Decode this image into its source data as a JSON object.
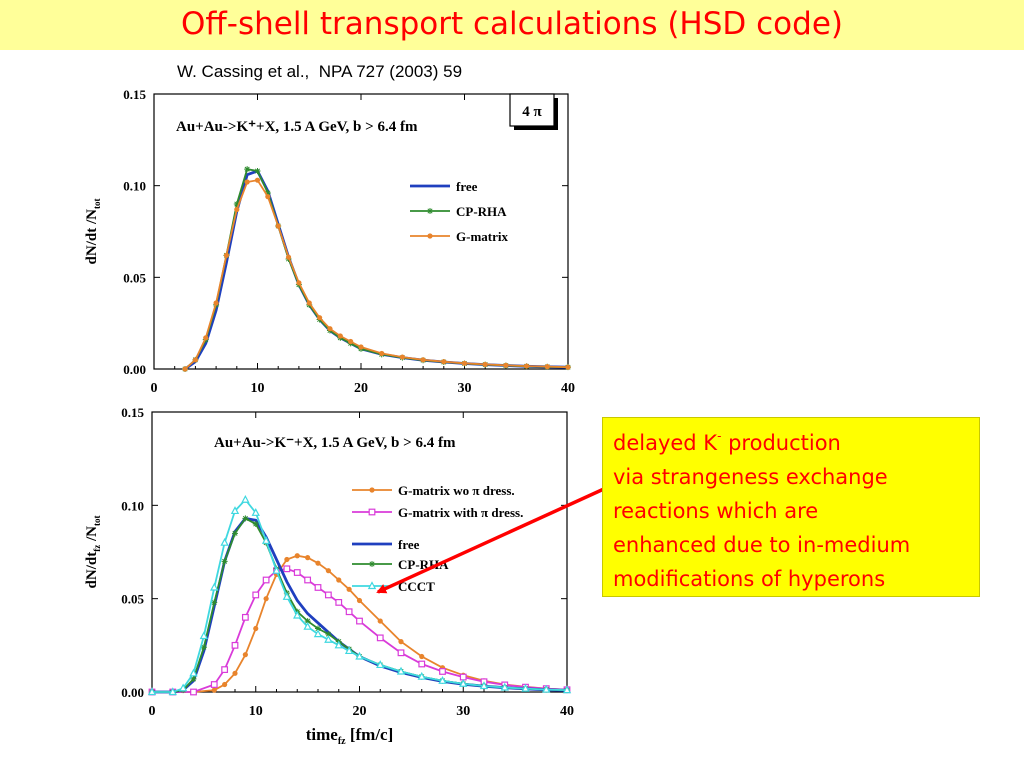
{
  "header": {
    "title": "Off-shell transport calculations (HSD code)",
    "citation": "W. Cassing et al.,  NPA 727 (2003) 59"
  },
  "callout": {
    "line1_main": "delayed K",
    "line1_sup": "-",
    "line1_tail": " production",
    "line2": "via strangeness exchange",
    "line3": "reactions which are",
    "line4": "enhanced due to in-medium",
    "line5": "modifications of hyperons"
  },
  "colors": {
    "title": "#ff0000",
    "title_bg": "#ffff99",
    "callout_bg": "#ffff00",
    "callout_text": "#ff0000",
    "arrow": "#ff0000"
  },
  "chart_data": [
    {
      "type": "line",
      "panel": "top",
      "title": "Au+Au->K⁺+X, 1.5 A GeV, b > 6.4 fm",
      "badge": "4 π",
      "xlabel": "",
      "ylabel": "dN/dt /N_tot",
      "xlim": [
        0,
        40
      ],
      "ylim": [
        0,
        0.15
      ],
      "xticks": [
        "0",
        "10",
        "20",
        "30",
        "40"
      ],
      "yticks": [
        "0.00",
        "0.05",
        "0.10",
        "0.15"
      ],
      "legend_position": "right",
      "series": [
        {
          "name": "free",
          "color": "#1f3fbf",
          "marker": "none",
          "x": [
            3,
            4,
            5,
            6,
            7,
            8,
            9,
            10,
            11,
            12,
            13,
            14,
            15,
            16,
            17,
            18,
            19,
            20,
            22,
            24,
            26,
            28,
            30,
            32,
            34,
            36,
            38,
            40
          ],
          "y": [
            0.0,
            0.004,
            0.014,
            0.032,
            0.058,
            0.086,
            0.106,
            0.108,
            0.097,
            0.079,
            0.061,
            0.046,
            0.035,
            0.027,
            0.021,
            0.017,
            0.014,
            0.011,
            0.008,
            0.0062,
            0.0048,
            0.0038,
            0.003,
            0.0024,
            0.0019,
            0.0015,
            0.0012,
            0.001
          ]
        },
        {
          "name": "CP-RHA",
          "color": "#2e8b2e",
          "marker": "star",
          "x": [
            3,
            4,
            5,
            6,
            7,
            8,
            9,
            10,
            11,
            12,
            13,
            14,
            15,
            16,
            17,
            18,
            19,
            20,
            22,
            24,
            26,
            28,
            30,
            32,
            34,
            36,
            38,
            40
          ],
          "y": [
            0.0,
            0.005,
            0.016,
            0.035,
            0.062,
            0.09,
            0.109,
            0.108,
            0.096,
            0.078,
            0.06,
            0.046,
            0.035,
            0.027,
            0.021,
            0.017,
            0.014,
            0.011,
            0.008,
            0.0062,
            0.0048,
            0.0038,
            0.003,
            0.0024,
            0.0019,
            0.0015,
            0.0012,
            0.001
          ]
        },
        {
          "name": "G-matrix",
          "color": "#e8842c",
          "marker": "circle",
          "x": [
            3,
            4,
            5,
            6,
            7,
            8,
            9,
            10,
            11,
            12,
            13,
            14,
            15,
            16,
            17,
            18,
            19,
            20,
            22,
            24,
            26,
            28,
            30,
            32,
            34,
            36,
            38,
            40
          ],
          "y": [
            0.0,
            0.005,
            0.017,
            0.036,
            0.062,
            0.087,
            0.102,
            0.103,
            0.094,
            0.078,
            0.061,
            0.047,
            0.036,
            0.028,
            0.022,
            0.018,
            0.015,
            0.012,
            0.0085,
            0.0065,
            0.005,
            0.004,
            0.0031,
            0.0025,
            0.002,
            0.0016,
            0.0013,
            0.001
          ]
        }
      ]
    },
    {
      "type": "line",
      "panel": "bottom",
      "title": "Au+Au->K⁻+X, 1.5 A GeV, b > 6.4 fm",
      "xlabel": "time_fz [fm/c]",
      "ylabel": "dN/dt_fz /N_tot",
      "xlim": [
        0,
        40
      ],
      "ylim": [
        0,
        0.15
      ],
      "xticks": [
        "0",
        "10",
        "20",
        "30",
        "40"
      ],
      "yticks": [
        "0.00",
        "0.05",
        "0.10",
        "0.15"
      ],
      "legend_position": "right",
      "series": [
        {
          "name": "G-matrix wo π dress.",
          "color": "#e8842c",
          "marker": "circle",
          "x": [
            0,
            2,
            4,
            6,
            7,
            8,
            9,
            10,
            11,
            12,
            13,
            14,
            15,
            16,
            17,
            18,
            19,
            20,
            22,
            24,
            26,
            28,
            30,
            32,
            34,
            36,
            38,
            40
          ],
          "y": [
            0.0,
            0.0,
            0.0,
            0.001,
            0.004,
            0.01,
            0.02,
            0.034,
            0.05,
            0.063,
            0.071,
            0.073,
            0.072,
            0.069,
            0.065,
            0.06,
            0.055,
            0.049,
            0.038,
            0.027,
            0.019,
            0.013,
            0.009,
            0.006,
            0.004,
            0.0028,
            0.0018,
            0.0012
          ]
        },
        {
          "name": "G-matrix with π dress.",
          "color": "#d93bd9",
          "marker": "square",
          "x": [
            0,
            2,
            4,
            6,
            7,
            8,
            9,
            10,
            11,
            12,
            13,
            14,
            15,
            16,
            17,
            18,
            19,
            20,
            22,
            24,
            26,
            28,
            30,
            32,
            34,
            36,
            38,
            40
          ],
          "y": [
            0.0,
            0.0,
            0.0,
            0.004,
            0.012,
            0.025,
            0.04,
            0.052,
            0.06,
            0.065,
            0.066,
            0.064,
            0.06,
            0.056,
            0.052,
            0.048,
            0.043,
            0.038,
            0.029,
            0.021,
            0.015,
            0.011,
            0.008,
            0.0055,
            0.0038,
            0.0026,
            0.0018,
            0.0012
          ]
        },
        {
          "name": "free",
          "color": "#1f3fbf",
          "marker": "none",
          "x": [
            0,
            2,
            3,
            4,
            5,
            6,
            7,
            8,
            9,
            10,
            11,
            12,
            13,
            14,
            15,
            16,
            17,
            18,
            19,
            20,
            22,
            24,
            26,
            28,
            30,
            32,
            34,
            36,
            38,
            40
          ],
          "y": [
            0.0,
            0.0,
            0.001,
            0.006,
            0.022,
            0.046,
            0.07,
            0.086,
            0.093,
            0.092,
            0.083,
            0.071,
            0.059,
            0.049,
            0.042,
            0.037,
            0.032,
            0.027,
            0.023,
            0.019,
            0.014,
            0.0105,
            0.0078,
            0.0057,
            0.0042,
            0.0031,
            0.0023,
            0.0017,
            0.0012,
            0.0009
          ]
        },
        {
          "name": "CP-RHA",
          "color": "#2e8b2e",
          "marker": "star",
          "x": [
            0,
            2,
            3,
            4,
            5,
            6,
            7,
            8,
            9,
            10,
            11,
            12,
            13,
            14,
            15,
            16,
            17,
            18,
            19,
            20,
            22,
            24,
            26,
            28,
            30,
            32,
            34,
            36,
            38,
            40
          ],
          "y": [
            0.0,
            0.0,
            0.001,
            0.007,
            0.024,
            0.048,
            0.07,
            0.085,
            0.093,
            0.09,
            0.08,
            0.066,
            0.053,
            0.043,
            0.038,
            0.034,
            0.031,
            0.027,
            0.023,
            0.019,
            0.0145,
            0.011,
            0.0082,
            0.006,
            0.0044,
            0.0032,
            0.0024,
            0.0018,
            0.0013,
            0.001
          ]
        },
        {
          "name": "CCCT",
          "color": "#3fd8e0",
          "marker": "triangle",
          "x": [
            0,
            2,
            3,
            4,
            5,
            6,
            7,
            8,
            9,
            10,
            11,
            12,
            13,
            14,
            15,
            16,
            17,
            18,
            19,
            20,
            22,
            24,
            26,
            28,
            30,
            32,
            34,
            36,
            38,
            40
          ],
          "y": [
            0.0,
            0.0,
            0.002,
            0.01,
            0.03,
            0.056,
            0.08,
            0.097,
            0.103,
            0.096,
            0.081,
            0.065,
            0.051,
            0.041,
            0.035,
            0.031,
            0.028,
            0.025,
            0.022,
            0.019,
            0.0145,
            0.011,
            0.0082,
            0.006,
            0.0044,
            0.0032,
            0.0024,
            0.0018,
            0.0013,
            0.001
          ]
        }
      ]
    }
  ]
}
